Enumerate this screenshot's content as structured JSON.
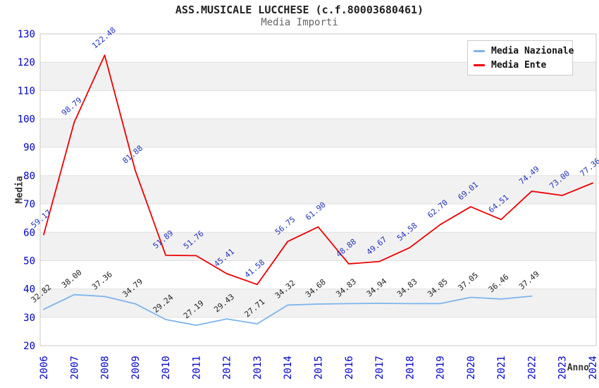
{
  "chart_data": {
    "type": "line",
    "title": "ASS.MUSICALE LUCCHESE (c.f.80003680461)",
    "subtitle": "Media Importi",
    "xlabel": "Anno",
    "ylabel": "Media",
    "ylim": [
      20,
      130
    ],
    "y_tick_step": 10,
    "grid": true,
    "legend_position": "top-right",
    "categories": [
      "2006",
      "2007",
      "2008",
      "2009",
      "2010",
      "2011",
      "2012",
      "2013",
      "2014",
      "2015",
      "2016",
      "2017",
      "2018",
      "2019",
      "2020",
      "2021",
      "2022",
      "2023",
      "2024"
    ],
    "series": [
      {
        "name": "Media Nazionale",
        "color": "#7cb5ec",
        "label_color": "#222222",
        "values": [
          32.82,
          38.0,
          37.36,
          34.79,
          29.24,
          27.19,
          29.43,
          27.71,
          34.32,
          34.68,
          34.83,
          34.94,
          34.83,
          34.85,
          37.05,
          36.46,
          37.49
        ]
      },
      {
        "name": "Media Ente",
        "color": "#ee0000",
        "label_color": "#2233bb",
        "values": [
          59.17,
          98.79,
          122.48,
          81.88,
          51.89,
          51.76,
          45.41,
          41.58,
          56.75,
          61.9,
          48.88,
          49.67,
          54.58,
          62.7,
          69.01,
          64.51,
          74.49,
          73.0,
          77.36
        ]
      }
    ],
    "colors": {
      "axis_tick": "#0000cc",
      "grid_line": "#e0e0e0",
      "plot_border": "#c8c8c8",
      "band_alt": "#f1f1f1",
      "background": "#ffffff",
      "title": "#222222",
      "subtitle": "#666666",
      "axis_title": "#333333"
    }
  }
}
